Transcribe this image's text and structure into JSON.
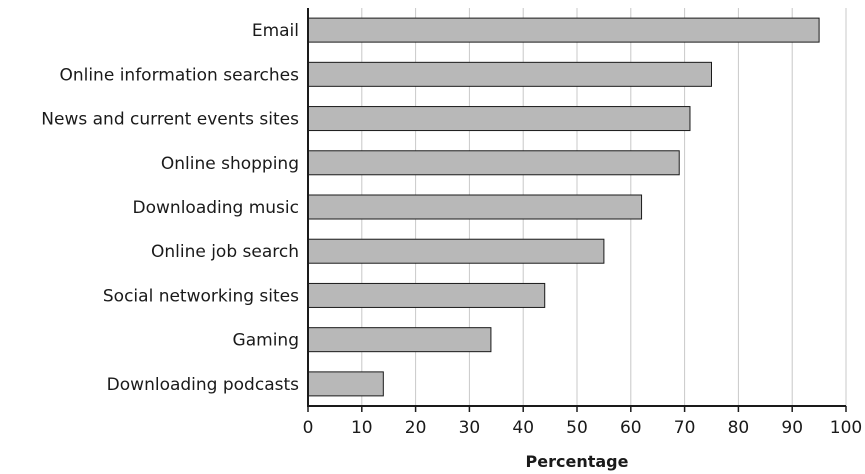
{
  "chart_data": {
    "type": "bar",
    "orientation": "horizontal",
    "categories": [
      "Email",
      "Online information searches",
      "News and current events sites",
      "Online shopping",
      "Downloading music",
      "Online job search",
      "Social networking sites",
      "Gaming",
      "Downloading podcasts"
    ],
    "values": [
      95,
      75,
      71,
      69,
      62,
      55,
      44,
      34,
      14
    ],
    "xlabel": "Percentage",
    "ylabel": "",
    "xlim": [
      0,
      100
    ],
    "xticks": [
      0,
      10,
      20,
      30,
      40,
      50,
      60,
      70,
      80,
      90,
      100
    ],
    "grid": "vertical",
    "colors": {
      "bar_fill": "#b8b8b8",
      "bar_stroke": "#1a1a1a",
      "grid": "#c8c8c8",
      "axis": "#1a1a1a"
    }
  }
}
